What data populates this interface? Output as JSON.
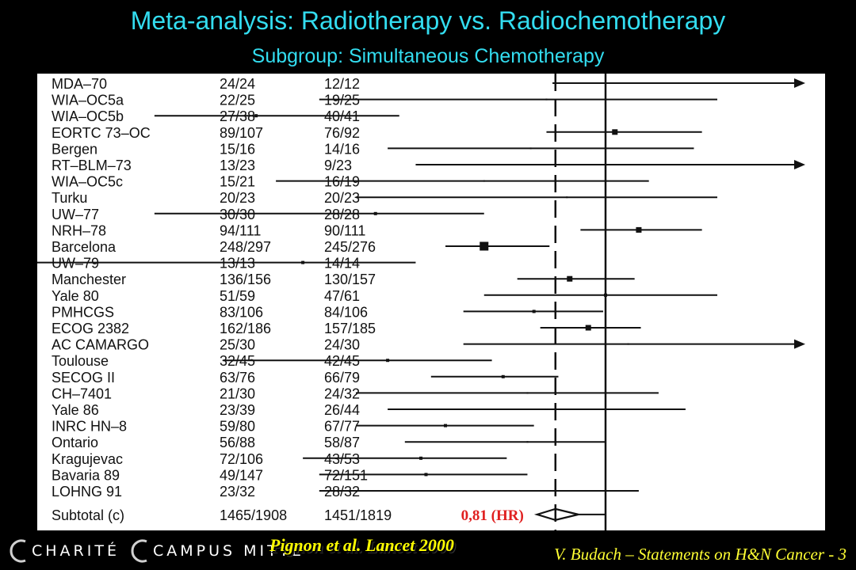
{
  "header": {
    "title": "Meta-analysis: Radiotherapy vs. Radiochemotherapy",
    "subtitle": "Subgroup: Simultaneous Chemotherapy"
  },
  "trials": [
    {
      "name": "MDA–70",
      "rt": "24/24",
      "rct": "12/12",
      "hr": 1.35,
      "lo": 0.8,
      "hi": null,
      "arrow": true,
      "box": "none"
    },
    {
      "name": "WIA–OC5a",
      "rt": "22/25",
      "rct": "19/25",
      "hr": 0.78,
      "lo": 0.3,
      "hi": 1.6,
      "arrow": false,
      "box": "none"
    },
    {
      "name": "WIA–OC5b",
      "rt": "27/38",
      "rct": "40/41",
      "hr": 0.23,
      "lo": 0.15,
      "hi": 0.42,
      "arrow": false,
      "box": "small"
    },
    {
      "name": "EORTC 73–OC",
      "rt": "89/107",
      "rct": "76/92",
      "hr": 1.04,
      "lo": 0.78,
      "hi": 1.5,
      "arrow": false,
      "box": "medium"
    },
    {
      "name": "Bergen",
      "rt": "15/16",
      "rct": "14/16",
      "hr": 0.73,
      "lo": 0.4,
      "hi": 1.45,
      "arrow": false,
      "box": "none"
    },
    {
      "name": "RT–BLM–73",
      "rt": "13/23",
      "rct": "9/23",
      "hr": 1.2,
      "lo": 0.45,
      "hi": null,
      "arrow": true,
      "box": "none"
    },
    {
      "name": "WIA–OC5c",
      "rt": "15/21",
      "rct": "16/19",
      "hr": 0.6,
      "lo": 0.25,
      "hi": 1.2,
      "arrow": false,
      "box": "none"
    },
    {
      "name": "Turku",
      "rt": "20/23",
      "rct": "20/23",
      "hr": 0.85,
      "lo": 0.35,
      "hi": 1.6,
      "arrow": false,
      "box": "none"
    },
    {
      "name": "UW–77",
      "rt": "30/30",
      "rct": "28/28",
      "hr": 0.38,
      "lo": 0.15,
      "hi": 0.6,
      "arrow": false,
      "box": "small"
    },
    {
      "name": "NRH–78",
      "rt": "94/111",
      "rct": "90/111",
      "hr": 1.15,
      "lo": 0.9,
      "hi": 1.5,
      "arrow": false,
      "box": "medium"
    },
    {
      "name": "Barcelona",
      "rt": "248/297",
      "rct": "245/276",
      "hr": 0.6,
      "lo": 0.51,
      "hi": 0.79,
      "arrow": false,
      "box": "large"
    },
    {
      "name": "UW–79",
      "rt": "13/13",
      "rct": "14/14",
      "hr": 0.28,
      "lo": 0.04,
      "hi": 0.45,
      "arrow": false,
      "box": "small"
    },
    {
      "name": "Manchester",
      "rt": "136/156",
      "rct": "130/157",
      "hr": 0.86,
      "lo": 0.69,
      "hi": 1.13,
      "arrow": false,
      "box": "medium"
    },
    {
      "name": "Yale 80",
      "rt": "51/59",
      "rct": "47/61",
      "hr": 1.0,
      "lo": 0.6,
      "hi": 1.6,
      "arrow": false,
      "box": "small"
    },
    {
      "name": "PMHCGS",
      "rt": "83/106",
      "rct": "84/106",
      "hr": 0.74,
      "lo": 0.55,
      "hi": 0.99,
      "arrow": false,
      "box": "small"
    },
    {
      "name": "ECOG 2382",
      "rt": "162/186",
      "rct": "157/185",
      "hr": 0.93,
      "lo": 0.76,
      "hi": 1.16,
      "arrow": false,
      "box": "medium"
    },
    {
      "name": "AC CAMARGO",
      "rt": "25/30",
      "rct": "24/30",
      "hr": 1.1,
      "lo": 0.55,
      "hi": null,
      "arrow": true,
      "box": "none"
    },
    {
      "name": "Toulouse",
      "rt": "32/45",
      "rct": "42/45",
      "hr": 0.4,
      "lo": 0.2,
      "hi": 0.62,
      "arrow": false,
      "box": "small"
    },
    {
      "name": "SECOG II",
      "rt": "63/76",
      "rct": "66/79",
      "hr": 0.65,
      "lo": 0.48,
      "hi": 0.82,
      "arrow": false,
      "box": "small"
    },
    {
      "name": "CH–7401",
      "rt": "21/30",
      "rct": "24/32",
      "hr": 0.72,
      "lo": 0.35,
      "hi": 1.25,
      "arrow": false,
      "box": "none"
    },
    {
      "name": "Yale 86",
      "rt": "23/39",
      "rct": "26/44",
      "hr": 0.78,
      "lo": 0.4,
      "hi": 1.4,
      "arrow": false,
      "box": "none"
    },
    {
      "name": "INRC HN–8",
      "rt": "59/80",
      "rct": "67/77",
      "hr": 0.51,
      "lo": 0.35,
      "hi": 0.74,
      "arrow": false,
      "box": "small"
    },
    {
      "name": "Ontario",
      "rt": "56/88",
      "rct": "58/87",
      "hr": 0.72,
      "lo": 0.43,
      "hi": 1.0,
      "arrow": false,
      "box": "none"
    },
    {
      "name": "Kragujevac",
      "rt": "72/106",
      "rct": "43/53",
      "hr": 0.46,
      "lo": 0.28,
      "hi": 0.66,
      "arrow": false,
      "box": "small"
    },
    {
      "name": "Bavaria 89",
      "rt": "49/147",
      "rct": "72/151",
      "hr": 0.47,
      "lo": 0.3,
      "hi": 0.72,
      "arrow": false,
      "box": "small"
    },
    {
      "name": "LOHNG 91",
      "rt": "23/32",
      "rct": "28/32",
      "hr": 0.6,
      "lo": 0.3,
      "hi": 1.15,
      "arrow": false,
      "box": "none"
    }
  ],
  "subtotal": {
    "name": "Subtotal (c)",
    "rt": "1465/1908",
    "rct": "1451/1819",
    "hr": 0.81,
    "lo": 0.76,
    "hi": 0.88
  },
  "hr_label": "0,81 (HR)",
  "footer": {
    "logo_left": "CHARITÉ",
    "logo_right": "CAMPUS MITTE",
    "citation": "Pignon et al. Lancet 2000",
    "credit": "V. Budach – Statements on H&N Cancer - 3"
  },
  "colors": {
    "title": "#33ddf0",
    "citation": "#ffff00",
    "hr_label": "#e02020"
  }
}
